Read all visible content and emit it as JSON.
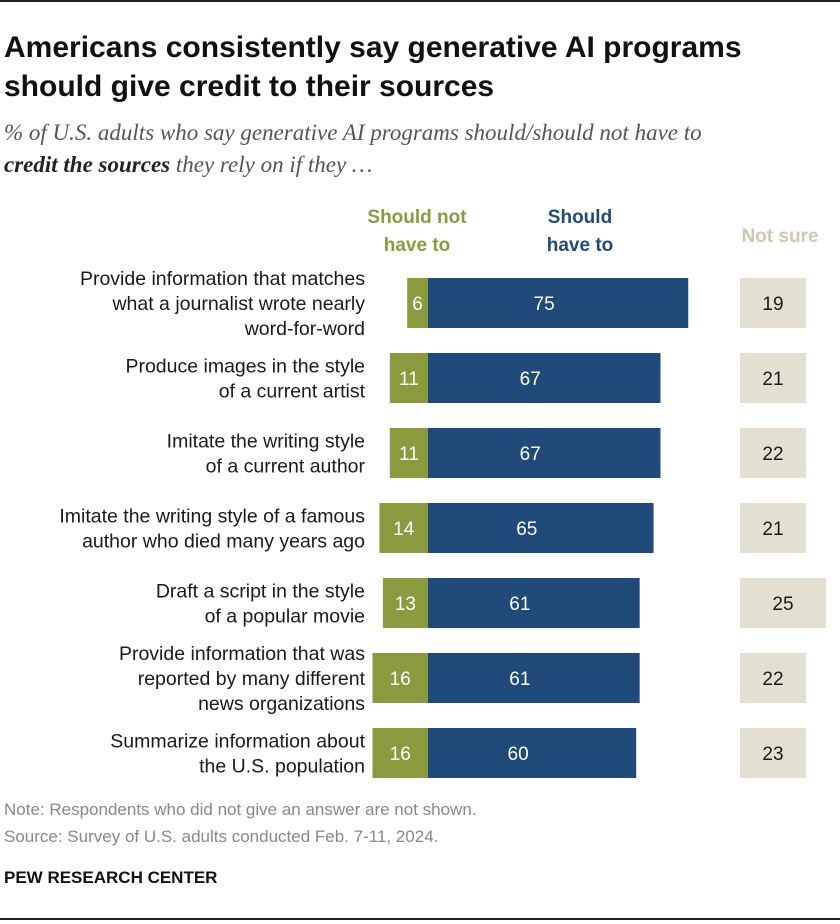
{
  "title_line1": "Americans consistently say generative AI programs",
  "title_line2": "should give credit to their sources",
  "subtitle_part1": "% of U.S. adults who say generative AI programs should/should not have to",
  "subtitle_bold": "credit the sources",
  "subtitle_part2": " they rely on if they …",
  "colors": {
    "should_not": "#8c9a3f",
    "should": "#1f4a7a",
    "not_sure_box": "#e3dfd1",
    "not_sure_header": "#cfc8b0"
  },
  "chart_data": {
    "type": "bar",
    "stacked": true,
    "orientation": "horizontal",
    "categories": [
      [
        "Provide information that matches",
        "what a journalist wrote nearly",
        "word-for-word"
      ],
      [
        "Produce images in the style",
        "of a current artist"
      ],
      [
        "Imitate the writing style",
        "of a current author"
      ],
      [
        "Imitate the writing style of a famous",
        "author who died many years ago"
      ],
      [
        "Draft a script in the style",
        "of a popular movie"
      ],
      [
        "Provide information that was",
        "reported by many different",
        "news organizations"
      ],
      [
        "Summarize information about",
        "the U.S. population"
      ]
    ],
    "series": [
      {
        "name": "Should not have to",
        "header": [
          "Should not",
          "have to"
        ],
        "values": [
          6,
          11,
          11,
          14,
          13,
          16,
          16
        ]
      },
      {
        "name": "Should have to",
        "header": [
          "Should",
          "have to"
        ],
        "values": [
          75,
          67,
          67,
          65,
          61,
          61,
          60
        ]
      },
      {
        "name": "Not sure",
        "header": [
          "Not sure"
        ],
        "values": [
          19,
          21,
          22,
          21,
          25,
          22,
          23
        ]
      }
    ]
  },
  "note": "Note: Respondents who did not give an answer are not shown.",
  "source": "Source: Survey of U.S. adults conducted Feb. 7-11, 2024.",
  "brand": "PEW RESEARCH CENTER"
}
